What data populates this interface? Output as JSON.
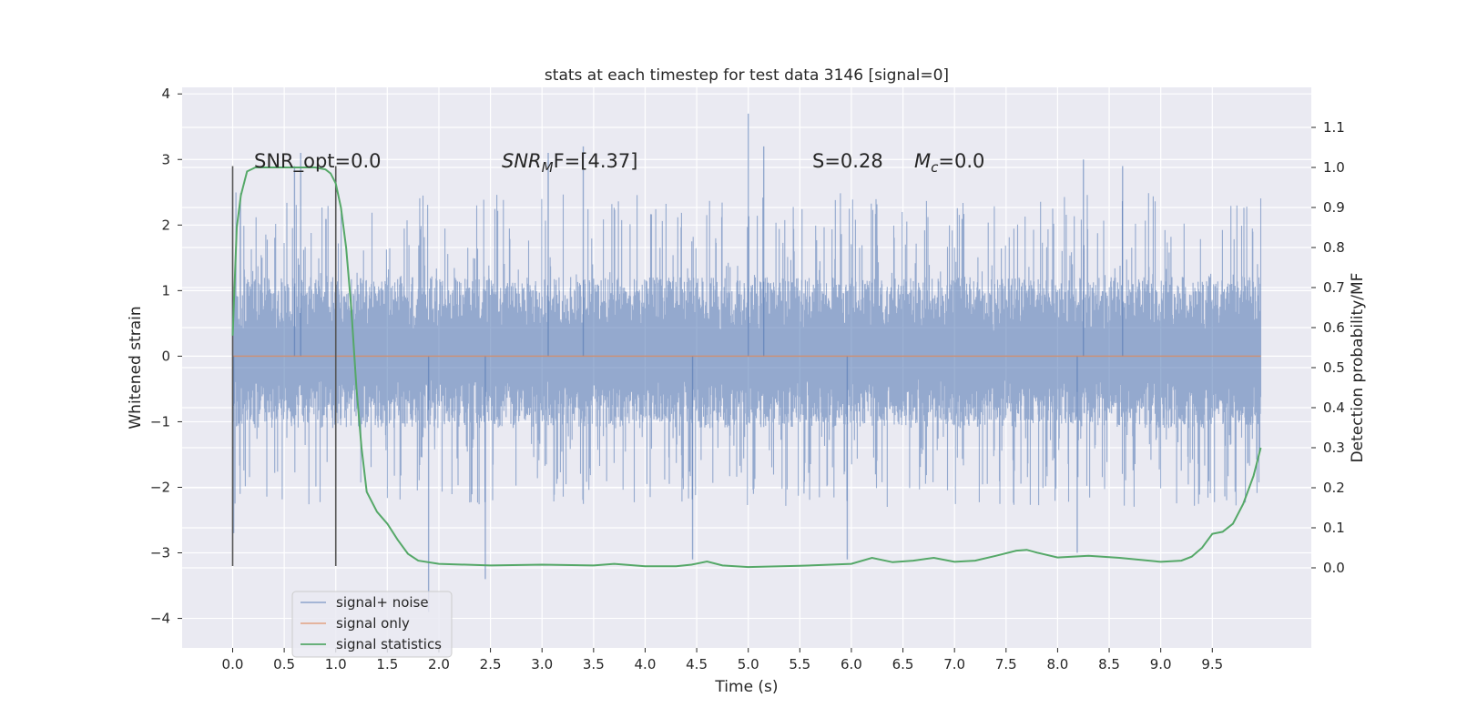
{
  "chart_data": {
    "type": "line",
    "title": "stats at each timestep for test data 3146 [signal=0]",
    "xlabel": "Time (s)",
    "ylabel": "Whitened strain",
    "ylabel_right": "Detection probability/MF",
    "xlim": [
      -0.49,
      10.46
    ],
    "ylim": [
      -4.45,
      4.1
    ],
    "ylim_right": [
      -0.2,
      1.2
    ],
    "x_ticks": [
      "0.0",
      "0.5",
      "1.0",
      "1.5",
      "2.0",
      "2.5",
      "3.0",
      "3.5",
      "4.0",
      "4.5",
      "5.0",
      "5.5",
      "6.0",
      "6.5",
      "7.0",
      "7.5",
      "8.0",
      "8.5",
      "9.0",
      "9.5"
    ],
    "y_ticks": [
      "4",
      "3",
      "2",
      "1",
      "0",
      "−1",
      "−2",
      "−3",
      "−4"
    ],
    "y_ticks_right": [
      "1.1",
      "1.0",
      "0.9",
      "0.8",
      "0.7",
      "0.6",
      "0.5",
      "0.4",
      "0.3",
      "0.2",
      "0.1",
      "0.0"
    ],
    "grid": true,
    "legend_position": "bottom-left",
    "annotations": {
      "snr_opt": "SNR_opt=0.0",
      "snr_mf_base": "SNR",
      "snr_mf_sub": "M",
      "snr_mf_rest": "F=[4.37]",
      "s_stat": "S=0.28",
      "mc_base": "M",
      "mc_sub": "c",
      "mc_rest": "=0.0"
    },
    "vertical_markers": [
      0.0,
      1.0
    ],
    "series": [
      {
        "name": "signal+ noise",
        "color": "#4c72b0",
        "axis": "left",
        "description_range": [
          0.0,
          9.97
        ],
        "envelope": {
          "typical_upper": 1.1,
          "typical_lower": -1.0,
          "spikes": [
            [
              0.01,
              -2.7
            ],
            [
              0.6,
              2.9
            ],
            [
              0.66,
              3.1
            ],
            [
              1.9,
              -3.9
            ],
            [
              2.45,
              -3.4
            ],
            [
              3.06,
              3.1
            ],
            [
              3.4,
              3.2
            ],
            [
              4.46,
              -3.1
            ],
            [
              5.0,
              3.7
            ],
            [
              5.15,
              3.2
            ],
            [
              5.96,
              -3.1
            ],
            [
              8.19,
              -3.0
            ],
            [
              8.25,
              3.0
            ],
            [
              8.63,
              2.9
            ]
          ]
        }
      },
      {
        "name": "signal only",
        "color": "#dd8452",
        "axis": "left",
        "x": [
          0.0,
          9.97
        ],
        "y": [
          0.0,
          0.0
        ]
      },
      {
        "name": "signal statistics",
        "color": "#55a868",
        "axis": "right",
        "x": [
          0.0,
          0.04,
          0.08,
          0.14,
          0.22,
          0.35,
          0.5,
          0.65,
          0.8,
          0.9,
          0.95,
          1.0,
          1.05,
          1.1,
          1.15,
          1.2,
          1.25,
          1.3,
          1.4,
          1.5,
          1.6,
          1.7,
          1.8,
          2.0,
          2.5,
          3.0,
          3.5,
          3.7,
          4.0,
          4.3,
          4.45,
          4.6,
          4.75,
          5.0,
          5.5,
          6.0,
          6.2,
          6.4,
          6.6,
          6.8,
          7.0,
          7.2,
          7.4,
          7.6,
          7.7,
          7.8,
          8.0,
          8.3,
          8.6,
          9.0,
          9.2,
          9.3,
          9.4,
          9.5,
          9.6,
          9.7,
          9.8,
          9.9,
          9.97
        ],
        "y": [
          0.58,
          0.85,
          0.93,
          0.99,
          1.0,
          1.0,
          1.0,
          1.0,
          1.0,
          0.995,
          0.985,
          0.96,
          0.9,
          0.8,
          0.65,
          0.45,
          0.3,
          0.19,
          0.14,
          0.11,
          0.07,
          0.035,
          0.018,
          0.01,
          0.006,
          0.008,
          0.006,
          0.01,
          0.004,
          0.004,
          0.008,
          0.016,
          0.006,
          0.002,
          0.005,
          0.01,
          0.025,
          0.014,
          0.018,
          0.025,
          0.015,
          0.018,
          0.03,
          0.043,
          0.045,
          0.038,
          0.026,
          0.03,
          0.025,
          0.015,
          0.018,
          0.028,
          0.05,
          0.085,
          0.09,
          0.11,
          0.16,
          0.23,
          0.3
        ]
      }
    ]
  }
}
